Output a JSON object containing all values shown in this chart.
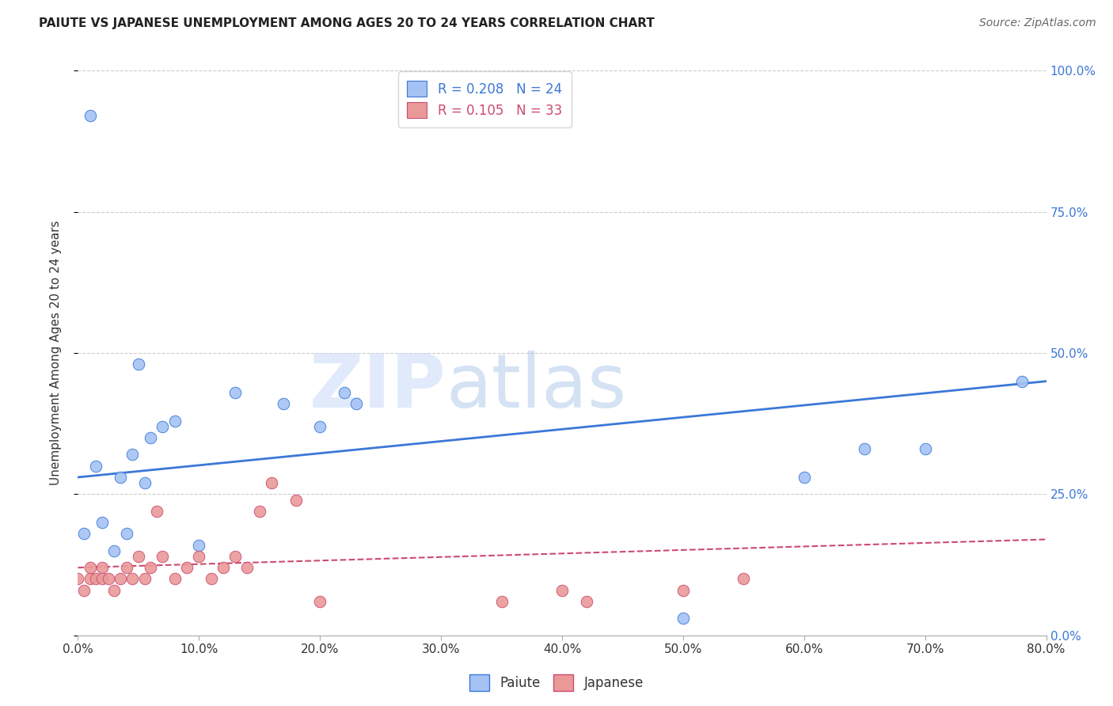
{
  "title": "PAIUTE VS JAPANESE UNEMPLOYMENT AMONG AGES 20 TO 24 YEARS CORRELATION CHART",
  "source": "Source: ZipAtlas.com",
  "ylabel": "Unemployment Among Ages 20 to 24 years",
  "xlabel_ticks": [
    0.0,
    10.0,
    20.0,
    30.0,
    40.0,
    50.0,
    60.0,
    70.0,
    80.0
  ],
  "ylabel_ticks": [
    0.0,
    25.0,
    50.0,
    75.0,
    100.0
  ],
  "xlim": [
    0,
    80
  ],
  "ylim": [
    0,
    100
  ],
  "paiute_R": 0.208,
  "paiute_N": 24,
  "japanese_R": 0.105,
  "japanese_N": 33,
  "paiute_color": "#a4c2f4",
  "japanese_color": "#ea9999",
  "paiute_line_color": "#3c78d8",
  "japanese_line_color": "#cc4b6e",
  "paiute_x": [
    0.5,
    1.5,
    2.0,
    3.0,
    3.5,
    4.0,
    4.5,
    5.0,
    5.5,
    6.0,
    7.0,
    8.0,
    10.0,
    13.0,
    17.0,
    20.0,
    22.0,
    23.0,
    60.0,
    65.0,
    70.0,
    50.0,
    78.0,
    1.0
  ],
  "paiute_y": [
    18.0,
    30.0,
    20.0,
    15.0,
    28.0,
    18.0,
    32.0,
    48.0,
    27.0,
    35.0,
    37.0,
    38.0,
    16.0,
    43.0,
    41.0,
    37.0,
    43.0,
    41.0,
    28.0,
    33.0,
    33.0,
    3.0,
    45.0,
    92.0
  ],
  "japanese_x": [
    0.0,
    0.5,
    1.0,
    1.0,
    1.5,
    2.0,
    2.0,
    2.5,
    3.0,
    3.5,
    4.0,
    4.5,
    5.0,
    5.5,
    6.0,
    6.5,
    7.0,
    8.0,
    9.0,
    10.0,
    11.0,
    12.0,
    13.0,
    14.0,
    15.0,
    16.0,
    18.0,
    20.0,
    35.0,
    40.0,
    42.0,
    50.0,
    55.0
  ],
  "japanese_y": [
    10.0,
    8.0,
    10.0,
    12.0,
    10.0,
    12.0,
    10.0,
    10.0,
    8.0,
    10.0,
    12.0,
    10.0,
    14.0,
    10.0,
    12.0,
    22.0,
    14.0,
    10.0,
    12.0,
    14.0,
    10.0,
    12.0,
    14.0,
    12.0,
    22.0,
    27.0,
    24.0,
    6.0,
    6.0,
    8.0,
    6.0,
    8.0,
    10.0
  ],
  "paiute_line_x": [
    0,
    80
  ],
  "paiute_line_y": [
    28.0,
    45.0
  ],
  "japanese_line_x": [
    0,
    80
  ],
  "japanese_line_y": [
    12.0,
    17.0
  ],
  "watermark_zip": "ZIP",
  "watermark_atlas": "atlas",
  "background_color": "#ffffff",
  "grid_color": "#cccccc",
  "right_tick_color": "#3c78d8",
  "bottom_legend_labels": [
    "Paiute",
    "Japanese"
  ]
}
